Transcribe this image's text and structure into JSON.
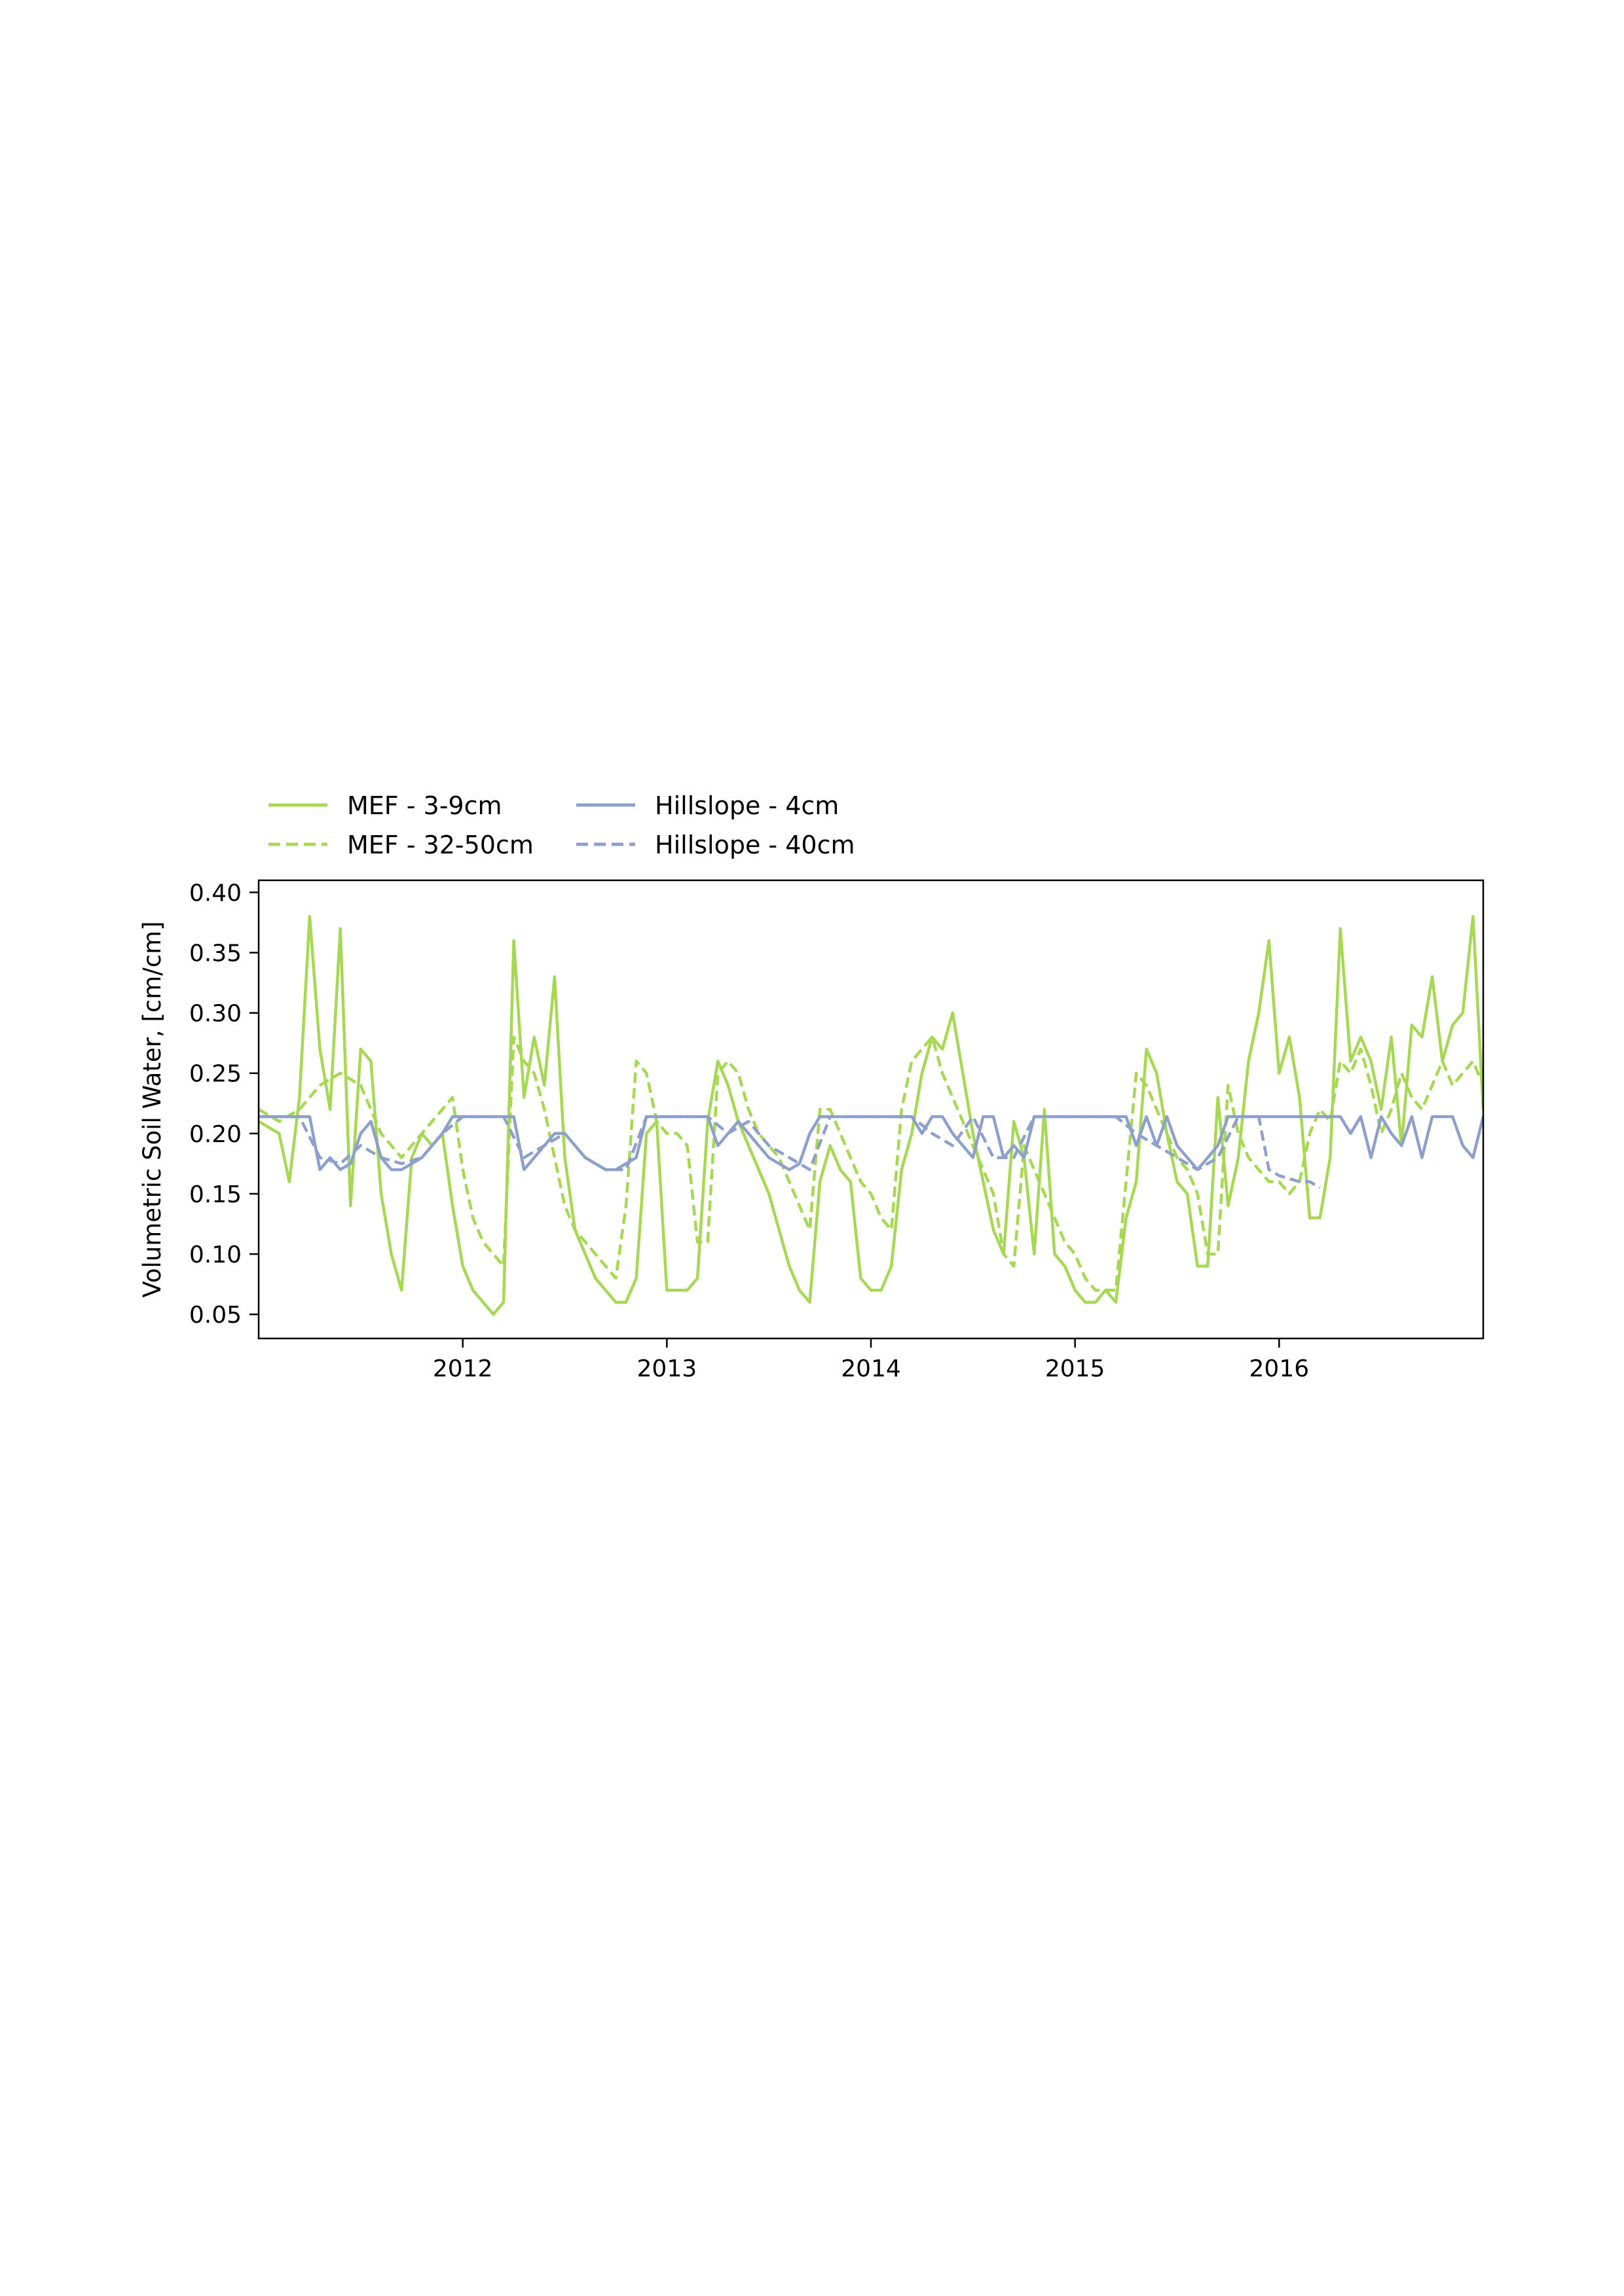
{
  "chart_data": {
    "type": "line",
    "ylabel": "Volumetric Soil Water, [cm/cm]",
    "xlabel": "",
    "title": "",
    "xlim": [
      2011.0,
      2017.0
    ],
    "ylim": [
      0.03,
      0.41
    ],
    "x_ticks": [
      2012,
      2013,
      2014,
      2015,
      2016
    ],
    "x_tick_labels": [
      "2012",
      "2013",
      "2014",
      "2015",
      "2016"
    ],
    "y_ticks": [
      0.05,
      0.1,
      0.15,
      0.2,
      0.25,
      0.3,
      0.35,
      0.4
    ],
    "y_tick_labels": [
      "0.05",
      "0.10",
      "0.15",
      "0.20",
      "0.25",
      "0.30",
      "0.35",
      "0.40"
    ],
    "legend": {
      "placement": "above-left",
      "columns": 2
    },
    "grid": false,
    "series": [
      {
        "name": "MEF - 3-9cm",
        "color": "#a6d854",
        "dash": "solid",
        "x": [
          2011.0,
          2011.1,
          2011.15,
          2011.2,
          2011.25,
          2011.3,
          2011.35,
          2011.4,
          2011.45,
          2011.5,
          2011.55,
          2011.6,
          2011.65,
          2011.7,
          2011.75,
          2011.8,
          2011.85,
          2011.9,
          2011.95,
          2012.0,
          2012.05,
          2012.1,
          2012.15,
          2012.2,
          2012.25,
          2012.3,
          2012.35,
          2012.4,
          2012.45,
          2012.5,
          2012.55,
          2012.6,
          2012.65,
          2012.7,
          2012.75,
          2012.8,
          2012.85,
          2012.9,
          2012.95,
          2013.0,
          2013.05,
          2013.1,
          2013.15,
          2013.2,
          2013.25,
          2013.3,
          2013.35,
          2013.4,
          2013.45,
          2013.5,
          2013.55,
          2013.6,
          2013.65,
          2013.7,
          2013.75,
          2013.8,
          2013.85,
          2013.9,
          2013.95,
          2014.0,
          2014.05,
          2014.1,
          2014.15,
          2014.2,
          2014.25,
          2014.3,
          2014.35,
          2014.4,
          2014.45,
          2014.5,
          2014.55,
          2014.6,
          2014.65,
          2014.7,
          2014.75,
          2014.8,
          2014.85,
          2014.9,
          2014.95,
          2015.0,
          2015.05,
          2015.1,
          2015.15,
          2015.2,
          2015.25,
          2015.3,
          2015.35,
          2015.4,
          2015.45,
          2015.5,
          2015.55,
          2015.6,
          2015.65,
          2015.7,
          2015.75,
          2015.8,
          2015.85,
          2015.9,
          2015.95,
          2016.0,
          2016.05,
          2016.1,
          2016.15,
          2016.2,
          2016.25,
          2016.3,
          2016.35,
          2016.4,
          2016.45,
          2016.5,
          2016.55,
          2016.6,
          2016.65,
          2016.7,
          2016.75,
          2016.8,
          2016.85,
          2016.9,
          2016.95,
          2017.0
        ],
        "y": [
          0.21,
          0.2,
          0.16,
          0.23,
          0.38,
          0.27,
          0.22,
          0.37,
          0.14,
          0.27,
          0.26,
          0.15,
          0.1,
          0.07,
          0.18,
          0.2,
          0.19,
          0.2,
          0.14,
          0.09,
          0.07,
          0.06,
          0.05,
          0.06,
          0.36,
          0.23,
          0.28,
          0.24,
          0.33,
          0.18,
          0.12,
          0.1,
          0.08,
          0.07,
          0.06,
          0.06,
          0.08,
          0.2,
          0.21,
          0.07,
          0.07,
          0.07,
          0.08,
          0.21,
          0.26,
          0.24,
          0.21,
          0.19,
          0.17,
          0.15,
          0.12,
          0.09,
          0.07,
          0.06,
          0.16,
          0.19,
          0.17,
          0.16,
          0.08,
          0.07,
          0.07,
          0.09,
          0.17,
          0.2,
          0.25,
          0.28,
          0.27,
          0.3,
          0.25,
          0.2,
          0.16,
          0.12,
          0.1,
          0.21,
          0.18,
          0.1,
          0.22,
          0.1,
          0.09,
          0.07,
          0.06,
          0.06,
          0.07,
          0.06,
          0.13,
          0.16,
          0.27,
          0.25,
          0.2,
          0.16,
          0.15,
          0.09,
          0.09,
          0.23,
          0.14,
          0.18,
          0.26,
          0.3,
          0.36,
          0.25,
          0.28,
          0.23,
          0.13,
          0.13,
          0.18,
          0.37,
          0.26,
          0.28,
          0.26,
          0.22,
          0.28,
          0.19,
          0.29,
          0.28,
          0.33,
          0.26,
          0.29,
          0.3,
          0.38,
          0.22
        ]
      },
      {
        "name": "MEF - 32-50cm",
        "color": "#a6d854",
        "dash": "dashed",
        "x": [
          2011.0,
          2011.1,
          2011.2,
          2011.3,
          2011.4,
          2011.5,
          2011.6,
          2011.7,
          2011.8,
          2011.9,
          2011.95,
          2012.0,
          2012.05,
          2012.1,
          2012.15,
          2012.2,
          2012.25,
          2012.3,
          2012.35,
          2012.4,
          2012.45,
          2012.5,
          2012.55,
          2012.6,
          2012.65,
          2012.7,
          2012.75,
          2012.8,
          2012.85,
          2012.9,
          2012.95,
          2013.0,
          2013.05,
          2013.1,
          2013.15,
          2013.2,
          2013.25,
          2013.3,
          2013.35,
          2013.4,
          2013.45,
          2013.5,
          2013.55,
          2013.6,
          2013.65,
          2013.7,
          2013.75,
          2013.8,
          2013.85,
          2013.9,
          2013.95,
          2014.0,
          2014.05,
          2014.1,
          2014.15,
          2014.2,
          2014.25,
          2014.3,
          2014.35,
          2014.4,
          2014.45,
          2014.5,
          2014.55,
          2014.6,
          2014.65,
          2014.7,
          2014.75,
          2014.8,
          2014.85,
          2014.9,
          2014.95,
          2015.0,
          2015.05,
          2015.1,
          2015.15,
          2015.2,
          2015.25,
          2015.3,
          2015.35,
          2015.4,
          2015.45,
          2015.5,
          2015.55,
          2015.6,
          2015.65,
          2015.7,
          2015.75,
          2015.8,
          2015.85,
          2015.9,
          2015.95,
          2016.0,
          2016.05,
          2016.1,
          2016.15,
          2016.2,
          2016.25,
          2016.3,
          2016.35,
          2016.4,
          2016.45,
          2016.5,
          2016.55,
          2016.6,
          2016.65,
          2016.7,
          2016.75,
          2016.8,
          2016.85,
          2016.9,
          2016.95,
          2017.0
        ],
        "y": [
          0.22,
          0.21,
          0.22,
          0.24,
          0.25,
          0.24,
          0.2,
          0.18,
          0.2,
          0.22,
          0.23,
          0.17,
          0.13,
          0.11,
          0.1,
          0.09,
          0.28,
          0.26,
          0.25,
          0.22,
          0.18,
          0.14,
          0.12,
          0.11,
          0.1,
          0.09,
          0.08,
          0.14,
          0.26,
          0.25,
          0.21,
          0.2,
          0.2,
          0.19,
          0.11,
          0.11,
          0.25,
          0.26,
          0.25,
          0.22,
          0.2,
          0.19,
          0.18,
          0.16,
          0.14,
          0.12,
          0.22,
          0.22,
          0.2,
          0.18,
          0.16,
          0.15,
          0.13,
          0.12,
          0.22,
          0.26,
          0.27,
          0.28,
          0.25,
          0.23,
          0.21,
          0.19,
          0.17,
          0.15,
          0.1,
          0.09,
          0.19,
          0.17,
          0.15,
          0.13,
          0.11,
          0.1,
          0.08,
          0.07,
          0.07,
          0.07,
          0.16,
          0.25,
          0.24,
          0.22,
          0.2,
          0.18,
          0.17,
          0.15,
          0.1,
          0.1,
          0.24,
          0.2,
          0.18,
          0.17,
          0.16,
          0.16,
          0.15,
          0.16,
          0.2,
          0.22,
          0.21,
          0.26,
          0.25,
          0.27,
          0.24,
          0.2,
          0.22,
          0.25,
          0.23,
          0.22,
          0.24,
          0.26,
          0.24,
          0.25,
          0.26,
          0.24
        ]
      },
      {
        "name": "Hillslope - 4cm",
        "color": "#8da0cb",
        "dash": "solid",
        "x": [
          2011.0,
          2011.2,
          2011.25,
          2011.3,
          2011.35,
          2011.4,
          2011.45,
          2011.5,
          2011.55,
          2011.6,
          2011.65,
          2011.7,
          2011.75,
          2011.8,
          2011.85,
          2011.9,
          2011.95,
          2012.0,
          2012.1,
          2012.2,
          2012.25,
          2012.3,
          2012.35,
          2012.4,
          2012.45,
          2012.5,
          2012.55,
          2012.6,
          2012.65,
          2012.7,
          2012.75,
          2012.8,
          2012.85,
          2012.9,
          2013.0,
          2013.1,
          2013.2,
          2013.25,
          2013.3,
          2013.35,
          2013.4,
          2013.45,
          2013.5,
          2013.55,
          2013.6,
          2013.65,
          2013.7,
          2013.75,
          2013.8,
          2013.9,
          2014.0,
          2014.1,
          2014.2,
          2014.25,
          2014.3,
          2014.35,
          2014.4,
          2014.45,
          2014.5,
          2014.55,
          2014.6,
          2014.65,
          2014.7,
          2014.75,
          2014.8,
          2014.85,
          2014.9,
          2015.0,
          2015.1,
          2015.2,
          2015.25,
          2015.3,
          2015.35,
          2015.4,
          2015.45,
          2015.5,
          2015.55,
          2015.6,
          2015.65,
          2015.7,
          2015.75,
          2015.8,
          2015.9,
          2016.0,
          2016.1,
          2016.2,
          2016.3,
          2016.35,
          2016.4,
          2016.45,
          2016.5,
          2016.55,
          2016.6,
          2016.65,
          2016.7,
          2016.75,
          2016.8,
          2016.85,
          2016.9,
          2016.95,
          2017.0
        ],
        "y": [
          0.214,
          0.214,
          0.214,
          0.17,
          0.18,
          0.17,
          0.175,
          0.2,
          0.21,
          0.18,
          0.17,
          0.17,
          0.175,
          0.18,
          0.19,
          0.2,
          0.214,
          0.214,
          0.214,
          0.214,
          0.214,
          0.17,
          0.18,
          0.19,
          0.2,
          0.2,
          0.19,
          0.18,
          0.175,
          0.17,
          0.17,
          0.175,
          0.18,
          0.214,
          0.214,
          0.214,
          0.214,
          0.19,
          0.2,
          0.21,
          0.2,
          0.19,
          0.18,
          0.175,
          0.17,
          0.175,
          0.2,
          0.214,
          0.214,
          0.214,
          0.214,
          0.214,
          0.214,
          0.2,
          0.214,
          0.214,
          0.2,
          0.19,
          0.18,
          0.214,
          0.214,
          0.18,
          0.19,
          0.18,
          0.214,
          0.214,
          0.214,
          0.214,
          0.214,
          0.214,
          0.214,
          0.19,
          0.214,
          0.19,
          0.214,
          0.19,
          0.18,
          0.17,
          0.18,
          0.19,
          0.214,
          0.214,
          0.214,
          0.214,
          0.214,
          0.214,
          0.214,
          0.2,
          0.214,
          0.18,
          0.214,
          0.2,
          0.19,
          0.214,
          0.18,
          0.214,
          0.214,
          0.214,
          0.19,
          0.18,
          0.214
        ]
      },
      {
        "name": "Hillslope - 40cm",
        "color": "#8da0cb",
        "dash": "dashed",
        "x": [
          2011.0,
          2011.2,
          2011.3,
          2011.4,
          2011.5,
          2011.6,
          2011.7,
          2011.8,
          2011.9,
          2012.0,
          2012.1,
          2012.2,
          2012.3,
          2012.4,
          2012.5,
          2012.6,
          2012.7,
          2012.8,
          2012.9,
          2013.0,
          2013.1,
          2013.2,
          2013.3,
          2013.4,
          2013.5,
          2013.6,
          2013.7,
          2013.8,
          2013.9,
          2014.0,
          2014.1,
          2014.2,
          2014.3,
          2014.4,
          2014.5,
          2014.6,
          2014.7,
          2014.8,
          2014.9,
          2015.0,
          2015.1,
          2015.2,
          2015.3,
          2015.4,
          2015.5,
          2015.6,
          2015.7,
          2015.8,
          2015.9,
          2015.95,
          2016.0,
          2016.1,
          2016.15,
          2016.2
        ],
        "y": [
          0.214,
          0.214,
          0.18,
          0.175,
          0.19,
          0.18,
          0.175,
          0.18,
          0.2,
          0.214,
          0.214,
          0.214,
          0.18,
          0.19,
          0.2,
          0.18,
          0.17,
          0.17,
          0.214,
          0.214,
          0.214,
          0.214,
          0.2,
          0.21,
          0.19,
          0.18,
          0.17,
          0.214,
          0.214,
          0.214,
          0.214,
          0.214,
          0.2,
          0.19,
          0.214,
          0.18,
          0.18,
          0.214,
          0.214,
          0.214,
          0.214,
          0.214,
          0.2,
          0.19,
          0.18,
          0.17,
          0.18,
          0.214,
          0.214,
          0.17,
          0.165,
          0.16,
          0.16,
          0.155
        ]
      }
    ]
  }
}
